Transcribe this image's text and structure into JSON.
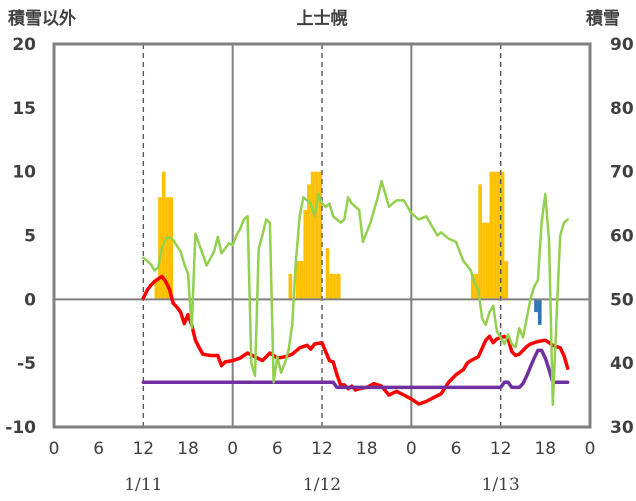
{
  "chart_data": {
    "type": "bar+line",
    "title": "上士幌",
    "ylabel_left": "積雪以外",
    "ylabel_right": "積雪",
    "ylim_left": [
      -10,
      20
    ],
    "ylim_right": [
      30,
      90
    ],
    "yticks_left": [
      "20",
      "15",
      "10",
      "5",
      "0",
      "-5",
      "-10"
    ],
    "yticks_right": [
      "90",
      "80",
      "70",
      "60",
      "50",
      "40",
      "30"
    ],
    "x_range_hours": [
      0,
      72
    ],
    "xtick_labels": [
      "0",
      "6",
      "12",
      "18",
      "0",
      "6",
      "12",
      "18",
      "0",
      "6",
      "12",
      "18",
      "0"
    ],
    "date_labels": [
      {
        "label": "1/11",
        "hour": 12
      },
      {
        "label": "1/12",
        "hour": 36
      },
      {
        "label": "1/13",
        "hour": 60
      }
    ],
    "grid": "dashed verticals at 12h; solid day separators and zero line",
    "colors": {
      "precip": "#ffc000",
      "negative_bar": "#2e75b6",
      "temp": "#ff0000",
      "dew": "#7030a0",
      "snow": "#92d050",
      "frame": "#808080",
      "text": "#404040"
    },
    "series": [
      {
        "kind": "bar",
        "axis": "left",
        "bin_hours": 0.5,
        "values": [
          [
            13.5,
            1.5
          ],
          [
            14.0,
            8
          ],
          [
            14.5,
            10
          ],
          [
            15.0,
            8
          ],
          [
            15.5,
            8
          ],
          [
            31.5,
            2
          ],
          [
            32.5,
            3
          ],
          [
            33.0,
            3
          ],
          [
            33.5,
            7
          ],
          [
            34.0,
            9
          ],
          [
            34.5,
            10
          ],
          [
            35.0,
            10
          ],
          [
            35.5,
            10
          ],
          [
            36.5,
            4
          ],
          [
            37.0,
            2
          ],
          [
            37.5,
            2
          ],
          [
            38.0,
            2
          ],
          [
            56.0,
            2
          ],
          [
            56.5,
            2
          ],
          [
            57.0,
            9
          ],
          [
            57.5,
            6
          ],
          [
            58.0,
            6
          ],
          [
            58.5,
            10
          ],
          [
            59.0,
            10
          ],
          [
            59.5,
            10
          ],
          [
            60.0,
            10
          ],
          [
            60.5,
            3
          ],
          [
            64.5,
            -1
          ],
          [
            65.0,
            -2
          ]
        ]
      },
      {
        "kind": "line",
        "axis": "left",
        "color": "#ff0000",
        "points": [
          [
            12.0,
            0.1
          ],
          [
            12.5,
            0.7
          ],
          [
            13.0,
            1.1
          ],
          [
            13.5,
            1.4
          ],
          [
            14.0,
            1.6
          ],
          [
            14.5,
            1.8
          ],
          [
            15.0,
            1.4
          ],
          [
            15.5,
            0.8
          ],
          [
            16.0,
            -0.3
          ],
          [
            16.5,
            -0.6
          ],
          [
            17.0,
            -1.0
          ],
          [
            17.5,
            -1.9
          ],
          [
            18.0,
            -1.2
          ],
          [
            18.5,
            -2.0
          ],
          [
            19.0,
            -3.2
          ],
          [
            19.5,
            -3.8
          ],
          [
            20.0,
            -4.3
          ],
          [
            21.0,
            -4.4
          ],
          [
            22.0,
            -4.4
          ],
          [
            22.5,
            -5.2
          ],
          [
            23.0,
            -4.9
          ],
          [
            24.0,
            -4.8
          ],
          [
            25.0,
            -4.6
          ],
          [
            26.0,
            -4.2
          ],
          [
            27.0,
            -4.5
          ],
          [
            28.0,
            -4.8
          ],
          [
            29.0,
            -4.2
          ],
          [
            30.0,
            -4.6
          ],
          [
            31.0,
            -4.5
          ],
          [
            32.0,
            -4.3
          ],
          [
            33.0,
            -3.8
          ],
          [
            34.0,
            -3.6
          ],
          [
            34.5,
            -3.9
          ],
          [
            35.0,
            -3.5
          ],
          [
            36.0,
            -3.4
          ],
          [
            37.0,
            -4.8
          ],
          [
            37.5,
            -4.9
          ],
          [
            38.0,
            -5.9
          ],
          [
            38.5,
            -6.7
          ],
          [
            39.0,
            -6.7
          ],
          [
            39.5,
            -7.0
          ],
          [
            40.0,
            -6.8
          ],
          [
            40.5,
            -7.1
          ],
          [
            41.0,
            -7.0
          ],
          [
            42.0,
            -6.9
          ],
          [
            43.0,
            -6.6
          ],
          [
            44.0,
            -6.8
          ],
          [
            45.0,
            -7.5
          ],
          [
            46.0,
            -7.2
          ],
          [
            47.0,
            -7.5
          ],
          [
            48.0,
            -7.8
          ],
          [
            49.0,
            -8.2
          ],
          [
            50.0,
            -8.0
          ],
          [
            51.0,
            -7.7
          ],
          [
            52.0,
            -7.4
          ],
          [
            53.0,
            -6.5
          ],
          [
            54.0,
            -5.9
          ],
          [
            55.0,
            -5.5
          ],
          [
            55.5,
            -5.0
          ],
          [
            56.0,
            -4.8
          ],
          [
            57.0,
            -4.5
          ],
          [
            58.0,
            -3.2
          ],
          [
            58.5,
            -2.9
          ],
          [
            59.0,
            -3.4
          ],
          [
            59.5,
            -3.1
          ],
          [
            60.5,
            -2.9
          ],
          [
            61.0,
            -3.1
          ],
          [
            61.5,
            -4.1
          ],
          [
            62.0,
            -4.4
          ],
          [
            62.5,
            -4.3
          ],
          [
            63.0,
            -4.0
          ],
          [
            63.5,
            -3.7
          ],
          [
            64.0,
            -3.5
          ],
          [
            65.0,
            -3.3
          ],
          [
            66.0,
            -3.2
          ],
          [
            66.5,
            -3.4
          ],
          [
            67.0,
            -3.6
          ],
          [
            68.0,
            -3.8
          ],
          [
            68.5,
            -4.4
          ],
          [
            69.0,
            -5.4
          ]
        ]
      },
      {
        "kind": "line",
        "axis": "left",
        "color": "#7030a0",
        "points": [
          [
            12.0,
            -6.5
          ],
          [
            24.0,
            -6.5
          ],
          [
            33.0,
            -6.5
          ],
          [
            37.5,
            -6.5
          ],
          [
            38.0,
            -6.9
          ],
          [
            48.0,
            -6.9
          ],
          [
            60.0,
            -6.9
          ],
          [
            60.5,
            -6.5
          ],
          [
            61.0,
            -6.5
          ],
          [
            61.5,
            -6.9
          ],
          [
            62.0,
            -6.9
          ],
          [
            62.5,
            -6.9
          ],
          [
            63.0,
            -6.6
          ],
          [
            63.5,
            -6.0
          ],
          [
            64.0,
            -5.3
          ],
          [
            64.5,
            -4.6
          ],
          [
            65.0,
            -4.0
          ],
          [
            65.5,
            -4.0
          ],
          [
            66.0,
            -4.6
          ],
          [
            66.5,
            -5.5
          ],
          [
            67.0,
            -6.5
          ],
          [
            68.0,
            -6.5
          ],
          [
            69.0,
            -6.5
          ]
        ]
      },
      {
        "kind": "line",
        "axis": "right",
        "color": "#92d050",
        "points": [
          [
            12.0,
            56.5
          ],
          [
            13.0,
            55.5
          ],
          [
            13.5,
            54.5
          ],
          [
            14.0,
            55.0
          ],
          [
            14.5,
            58.0
          ],
          [
            15.0,
            59.5
          ],
          [
            15.5,
            59.7
          ],
          [
            16.0,
            59.3
          ],
          [
            17.0,
            57.5
          ],
          [
            17.5,
            55.5
          ],
          [
            18.0,
            54.0
          ],
          [
            18.5,
            45.5
          ],
          [
            19.0,
            60.3
          ],
          [
            20.0,
            57.0
          ],
          [
            20.5,
            55.3
          ],
          [
            21.5,
            57.5
          ],
          [
            22.0,
            59.8
          ],
          [
            22.5,
            57.2
          ],
          [
            23.0,
            58.0
          ],
          [
            23.5,
            58.8
          ],
          [
            24.0,
            58.5
          ],
          [
            24.5,
            60.0
          ],
          [
            25.0,
            61.0
          ],
          [
            25.5,
            62.5
          ],
          [
            26.0,
            63.0
          ],
          [
            26.5,
            40.0
          ],
          [
            27.0,
            38.0
          ],
          [
            27.5,
            58.0
          ],
          [
            28.0,
            60.0
          ],
          [
            28.5,
            62.5
          ],
          [
            29.0,
            62.0
          ],
          [
            29.5,
            37.0
          ],
          [
            30.0,
            41.0
          ],
          [
            30.5,
            38.5
          ],
          [
            31.0,
            40.0
          ],
          [
            31.5,
            42.0
          ],
          [
            32.0,
            46.0
          ],
          [
            32.5,
            56.0
          ],
          [
            33.0,
            63.0
          ],
          [
            33.5,
            66.0
          ],
          [
            34.0,
            65.5
          ],
          [
            34.5,
            65.0
          ],
          [
            35.0,
            63.0
          ],
          [
            35.5,
            66.5
          ],
          [
            36.0,
            65.0
          ],
          [
            36.5,
            64.5
          ],
          [
            37.0,
            65.0
          ],
          [
            37.5,
            63.0
          ],
          [
            38.0,
            62.5
          ],
          [
            38.5,
            62.0
          ],
          [
            39.0,
            62.5
          ],
          [
            39.5,
            66.0
          ],
          [
            40.0,
            65.0
          ],
          [
            41.0,
            64.0
          ],
          [
            41.5,
            59.0
          ],
          [
            42.0,
            60.5
          ],
          [
            42.5,
            62.0
          ],
          [
            43.0,
            64.0
          ],
          [
            43.5,
            66.0
          ],
          [
            44.0,
            68.5
          ],
          [
            45.0,
            64.5
          ],
          [
            45.5,
            65.0
          ],
          [
            46.0,
            65.5
          ],
          [
            47.0,
            65.5
          ],
          [
            48.0,
            63.5
          ],
          [
            49.0,
            62.5
          ],
          [
            50.0,
            63.0
          ],
          [
            51.0,
            61.0
          ],
          [
            51.5,
            60.0
          ],
          [
            52.0,
            60.5
          ],
          [
            53.0,
            59.5
          ],
          [
            54.0,
            59.0
          ],
          [
            55.0,
            56.0
          ],
          [
            56.0,
            54.5
          ],
          [
            56.5,
            52.5
          ],
          [
            57.0,
            51.5
          ],
          [
            57.5,
            47.0
          ],
          [
            58.0,
            46.0
          ],
          [
            58.5,
            48.0
          ],
          [
            59.0,
            49.0
          ],
          [
            59.5,
            45.0
          ],
          [
            60.0,
            44.0
          ],
          [
            60.5,
            43.0
          ],
          [
            61.0,
            44.5
          ],
          [
            61.5,
            43.0
          ],
          [
            62.0,
            42.5
          ],
          [
            62.5,
            45.5
          ],
          [
            63.0,
            44.0
          ],
          [
            63.5,
            47.0
          ],
          [
            64.0,
            50.0
          ],
          [
            64.5,
            52.0
          ],
          [
            65.0,
            53.0
          ],
          [
            65.5,
            62.0
          ],
          [
            66.0,
            66.5
          ],
          [
            66.5,
            59.0
          ],
          [
            67.0,
            33.5
          ],
          [
            67.5,
            47.0
          ],
          [
            68.0,
            60.0
          ],
          [
            68.5,
            62.0
          ],
          [
            69.0,
            62.5
          ]
        ]
      }
    ]
  }
}
